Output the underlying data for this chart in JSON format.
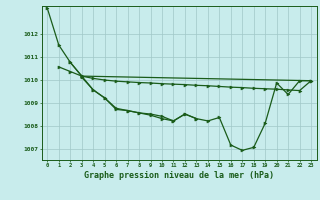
{
  "background_color": "#c8ecec",
  "grid_color": "#a0c8c8",
  "line_color": "#1a5c1a",
  "xlabel": "Graphe pression niveau de la mer (hPa)",
  "xlabel_fontsize": 6,
  "ylim": [
    1006.5,
    1013.2
  ],
  "xlim": [
    -0.5,
    23.5
  ],
  "yticks": [
    1007,
    1008,
    1009,
    1010,
    1011,
    1012
  ],
  "xticks": [
    0,
    1,
    2,
    3,
    4,
    5,
    6,
    7,
    8,
    9,
    10,
    11,
    12,
    13,
    14,
    15,
    16,
    17,
    18,
    19,
    20,
    21,
    22,
    23
  ],
  "line1_x": [
    0,
    1,
    2,
    3,
    4,
    5,
    6,
    7,
    8,
    9,
    10,
    11,
    12,
    13
  ],
  "line1_y": [
    1013.1,
    1011.5,
    1010.75,
    1010.15,
    1009.55,
    1009.2,
    1008.7,
    1008.65,
    1008.55,
    1008.45,
    1008.3,
    1008.2,
    1008.5,
    1008.3
  ],
  "line2_x": [
    1,
    2,
    3,
    23
  ],
  "line2_y": [
    1010.55,
    1010.35,
    1010.15,
    1009.95
  ],
  "line3_x": [
    2,
    3,
    4,
    5,
    6,
    7,
    8,
    9,
    10,
    11,
    12,
    13,
    14,
    15,
    16,
    17,
    18,
    19,
    20,
    21,
    22,
    23
  ],
  "line3_y": [
    1010.75,
    1010.15,
    1010.05,
    1009.98,
    1009.93,
    1009.9,
    1009.87,
    1009.85,
    1009.82,
    1009.8,
    1009.78,
    1009.75,
    1009.73,
    1009.7,
    1009.67,
    1009.65,
    1009.62,
    1009.6,
    1009.58,
    1009.55,
    1009.52,
    1009.95
  ],
  "line4_x": [
    3,
    4,
    5,
    6,
    7,
    8,
    9,
    10,
    11,
    12,
    13,
    14,
    15,
    16,
    17,
    18,
    19,
    20,
    21,
    22,
    23
  ],
  "line4_y": [
    1010.1,
    1009.55,
    1009.2,
    1008.75,
    1008.65,
    1008.55,
    1008.5,
    1008.4,
    1008.2,
    1008.5,
    1008.3,
    1008.2,
    1008.35,
    1007.15,
    1006.92,
    1007.05,
    1008.1,
    1009.85,
    1009.35,
    1009.95,
    1009.95
  ]
}
